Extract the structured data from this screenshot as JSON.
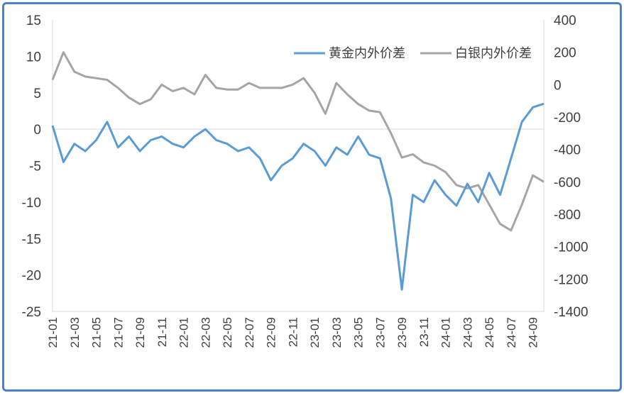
{
  "chart_data": {
    "type": "line",
    "title": "",
    "xlabel": "",
    "ylabel": "",
    "y2label": "",
    "legend_position": "top-right",
    "grid": false,
    "x_tick_labels": [
      "21-01",
      "21-03",
      "21-05",
      "21-07",
      "21-09",
      "21-11",
      "22-01",
      "22-03",
      "22-05",
      "22-07",
      "22-09",
      "22-11",
      "23-01",
      "23-03",
      "23-05",
      "23-07",
      "23-09",
      "23-11",
      "24-01",
      "24-03",
      "24-05",
      "24-07",
      "24-09"
    ],
    "x_range": [
      "2021-01",
      "2024-10"
    ],
    "ylim_left": [
      -25,
      15
    ],
    "ylim_right": [
      -1400,
      400
    ],
    "left_ticks": [
      15,
      10,
      5,
      0,
      -5,
      -10,
      -15,
      -20,
      -25
    ],
    "right_ticks": [
      400,
      200,
      0,
      -200,
      -400,
      -600,
      -800,
      -1000,
      -1200,
      -1400
    ],
    "series": [
      {
        "name": "黄金内外价差",
        "axis": "left",
        "color": "#5b9bd5",
        "x": [
          "2021-01",
          "2021-02",
          "2021-03",
          "2021-04",
          "2021-05",
          "2021-06",
          "2021-07",
          "2021-08",
          "2021-09",
          "2021-10",
          "2021-11",
          "2021-12",
          "2022-01",
          "2022-02",
          "2022-03",
          "2022-04",
          "2022-05",
          "2022-06",
          "2022-07",
          "2022-08",
          "2022-09",
          "2022-10",
          "2022-11",
          "2022-12",
          "2023-01",
          "2023-02",
          "2023-03",
          "2023-04",
          "2023-05",
          "2023-06",
          "2023-07",
          "2023-08",
          "2023-09",
          "2023-10",
          "2023-11",
          "2023-12",
          "2024-01",
          "2024-02",
          "2024-03",
          "2024-04",
          "2024-05",
          "2024-06",
          "2024-07",
          "2024-08",
          "2024-09",
          "2024-10"
        ],
        "values": [
          0.5,
          -4.5,
          -2.0,
          -3.0,
          -1.5,
          1.0,
          -2.5,
          -1.0,
          -3.0,
          -1.5,
          -1.0,
          -2.0,
          -2.5,
          -1.0,
          0.0,
          -1.5,
          -2.0,
          -3.0,
          -2.5,
          -4.0,
          -7.0,
          -5.0,
          -4.0,
          -2.0,
          -3.0,
          -5.0,
          -2.5,
          -3.5,
          -1.0,
          -3.5,
          -4.0,
          -9.5,
          -22.0,
          -9.0,
          -10.0,
          -7.0,
          -9.0,
          -10.5,
          -7.5,
          -10.0,
          -6.0,
          -9.0,
          -4.0,
          1.0,
          3.0,
          3.5
        ]
      },
      {
        "name": "白银内外价差",
        "axis": "right",
        "color": "#a5a5a5",
        "x": [
          "2021-01",
          "2021-02",
          "2021-03",
          "2021-04",
          "2021-05",
          "2021-06",
          "2021-07",
          "2021-08",
          "2021-09",
          "2021-10",
          "2021-11",
          "2021-12",
          "2022-01",
          "2022-02",
          "2022-03",
          "2022-04",
          "2022-05",
          "2022-06",
          "2022-07",
          "2022-08",
          "2022-09",
          "2022-10",
          "2022-11",
          "2022-12",
          "2023-01",
          "2023-02",
          "2023-03",
          "2023-04",
          "2023-05",
          "2023-06",
          "2023-07",
          "2023-08",
          "2023-09",
          "2023-10",
          "2023-11",
          "2023-12",
          "2024-01",
          "2024-02",
          "2024-03",
          "2024-04",
          "2024-05",
          "2024-06",
          "2024-07",
          "2024-08",
          "2024-09",
          "2024-10"
        ],
        "values": [
          30,
          200,
          80,
          50,
          40,
          30,
          -20,
          -80,
          -120,
          -90,
          0,
          -40,
          -20,
          -60,
          60,
          -20,
          -30,
          -30,
          10,
          -20,
          -20,
          -20,
          0,
          40,
          -50,
          -180,
          10,
          -60,
          -120,
          -160,
          -170,
          -300,
          -450,
          -430,
          -480,
          -500,
          -540,
          -620,
          -640,
          -620,
          -740,
          -860,
          -900,
          -740,
          -560,
          -600
        ]
      }
    ]
  }
}
